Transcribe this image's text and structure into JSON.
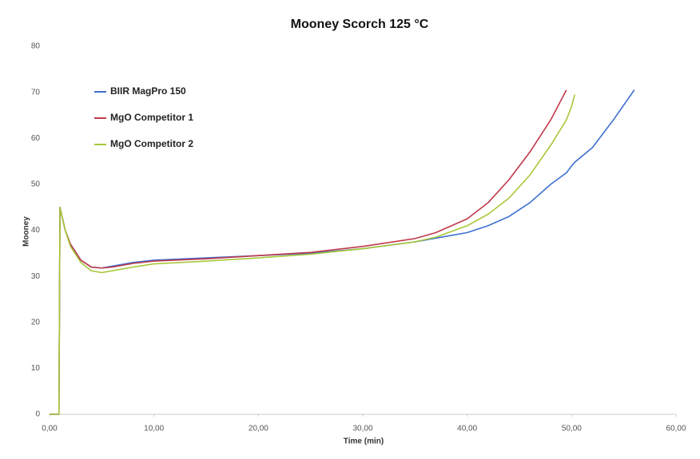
{
  "chart_data": {
    "type": "line",
    "title": "Mooney Scorch 125 °C",
    "xlabel": "Time (min)",
    "ylabel": "Mooney",
    "x": [
      0,
      0.9,
      1,
      1.5,
      2,
      3,
      4,
      5,
      6,
      8,
      10,
      15,
      20,
      25,
      30,
      35,
      37,
      40,
      42,
      44,
      46,
      48,
      49.5,
      50,
      50.3,
      52,
      54,
      56
    ],
    "series": [
      {
        "name": "BIIR MagPro 150",
        "color": "#3d6fd0",
        "values": [
          0,
          0,
          45,
          40,
          37,
          33.5,
          32,
          31.8,
          32.2,
          33,
          33.5,
          34,
          34.5,
          35,
          36,
          37.5,
          38.3,
          39.5,
          41,
          43,
          46,
          50,
          52.5,
          54,
          54.8,
          58,
          64,
          70.5
        ]
      },
      {
        "name": "MgO Competitor 1",
        "color": "#c0394b",
        "values": [
          0,
          0,
          45,
          40,
          37,
          33.5,
          32,
          31.8,
          32,
          32.8,
          33.3,
          33.8,
          34.5,
          35.2,
          36.5,
          38.2,
          39.5,
          42.5,
          46,
          51,
          57,
          64,
          70.5,
          null,
          null,
          null,
          null,
          null
        ]
      },
      {
        "name": "MgO Competitor 2",
        "color": "#a8c83a",
        "values": [
          0,
          0,
          45,
          40,
          36.5,
          33,
          31.2,
          30.8,
          31.2,
          32,
          32.7,
          33.3,
          34,
          34.8,
          36,
          37.5,
          38.5,
          41,
          43.5,
          47,
          52,
          58.5,
          64,
          67,
          69.5,
          null,
          null,
          null
        ]
      }
    ],
    "xlim": [
      0,
      60
    ],
    "xticks": [
      {
        "value": 0,
        "label": "0,00"
      },
      {
        "value": 10,
        "label": "10,00"
      },
      {
        "value": 20,
        "label": "20,00"
      },
      {
        "value": 30,
        "label": "30,00"
      },
      {
        "value": 40,
        "label": "40,00"
      },
      {
        "value": 50,
        "label": "50,00"
      },
      {
        "value": 60,
        "label": "60,00"
      }
    ],
    "ylim": [
      0,
      80
    ],
    "yticks": [
      0,
      10,
      20,
      30,
      40,
      50,
      60,
      70,
      80
    ],
    "grid": false
  }
}
